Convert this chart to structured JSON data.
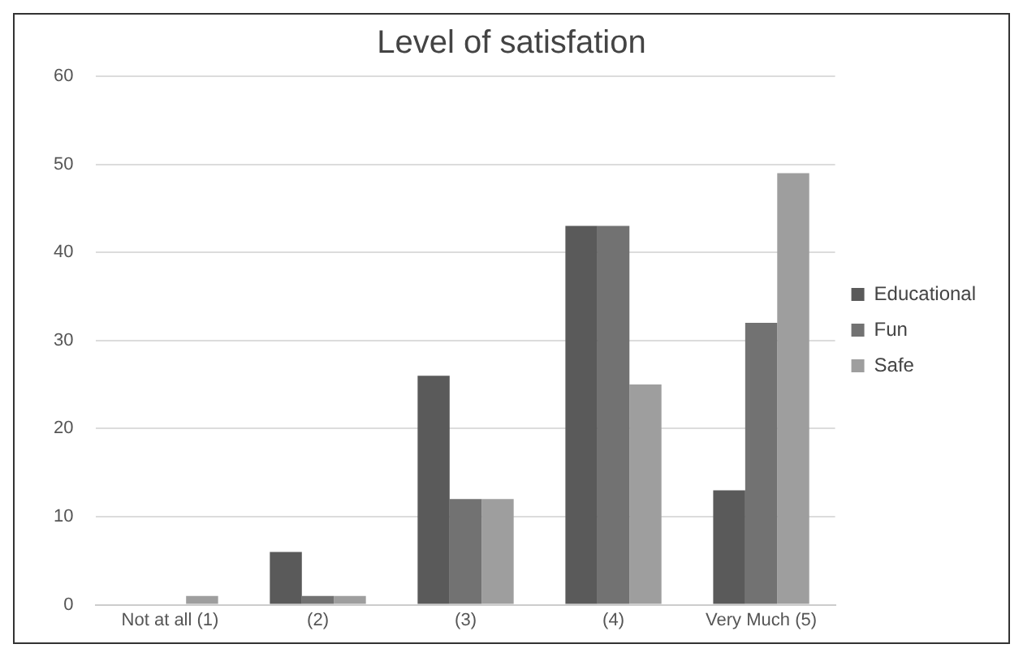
{
  "chart_data": {
    "type": "bar",
    "title": "Level of satisfation",
    "categories": [
      "Not at all (1)",
      "(2)",
      "(3)",
      "(4)",
      "Very Much (5)"
    ],
    "series": [
      {
        "name": "Educational",
        "color": "#5a5a5a",
        "values": [
          0,
          6,
          26,
          43,
          13
        ]
      },
      {
        "name": "Fun",
        "color": "#727272",
        "values": [
          0,
          1,
          12,
          43,
          32
        ]
      },
      {
        "name": "Safe",
        "color": "#9e9e9e",
        "values": [
          1,
          1,
          12,
          25,
          49
        ]
      }
    ],
    "ylim": [
      0,
      60
    ],
    "yticks": [
      0,
      10,
      20,
      30,
      40,
      50,
      60
    ],
    "grid": "y",
    "legend": "right"
  }
}
